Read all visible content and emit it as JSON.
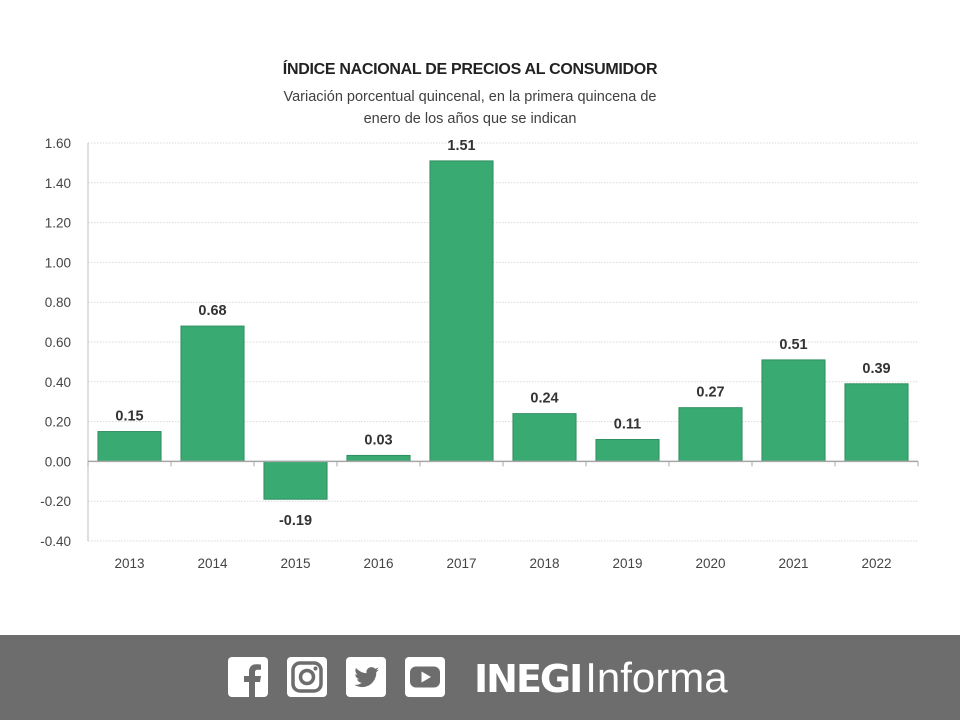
{
  "chart_data": {
    "type": "bar",
    "title": "ÍNDICE NACIONAL DE PRECIOS AL CONSUMIDOR",
    "subtitle_lines": [
      "Variación porcentual quincenal, en la primera quincena de",
      "enero de los años que se indican"
    ],
    "categories": [
      "2013",
      "2014",
      "2015",
      "2016",
      "2017",
      "2018",
      "2019",
      "2020",
      "2021",
      "2022"
    ],
    "values": [
      0.15,
      0.68,
      -0.19,
      0.03,
      1.51,
      0.24,
      0.11,
      0.27,
      0.51,
      0.39
    ],
    "data_labels": [
      "0.15",
      "0.68",
      "-0.19",
      "0.03",
      "1.51",
      "0.24",
      "0.11",
      "0.27",
      "0.51",
      "0.39"
    ],
    "y_ticks": [
      -0.4,
      -0.2,
      0.0,
      0.2,
      0.4,
      0.6,
      0.8,
      1.0,
      1.2,
      1.4,
      1.6
    ],
    "y_tick_labels": [
      "-0.40",
      "-0.20",
      "0.00",
      "0.20",
      "0.40",
      "0.60",
      "0.80",
      "1.00",
      "1.20",
      "1.40",
      "1.60"
    ],
    "ylim": [
      -0.4,
      1.6
    ],
    "xlabel": "",
    "ylabel": "",
    "grid": true,
    "legend": "none",
    "bar_color": "#3aaa73",
    "bar_edge_color": "#2f8f5f"
  },
  "footer": {
    "background": "#6d6d6d",
    "icons": [
      "facebook-icon",
      "instagram-icon",
      "twitter-icon",
      "youtube-icon"
    ],
    "brand_strong": "INEGI",
    "brand_light": "Informa"
  }
}
